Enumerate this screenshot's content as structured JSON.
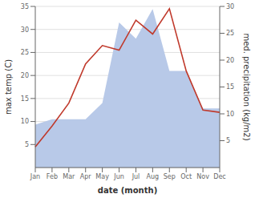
{
  "chart_data": {
    "type": "line",
    "categories": [
      "Jan",
      "Feb",
      "Mar",
      "Apr",
      "May",
      "Jun",
      "Jul",
      "Aug",
      "Sep",
      "Oct",
      "Nov",
      "Dec"
    ],
    "series": [
      {
        "type": "area",
        "color": "#b8c9e8",
        "axis": "y2",
        "values": [
          8.0,
          9.0,
          9.0,
          9.0,
          12.0,
          27.0,
          24.0,
          29.5,
          18.0,
          18.0,
          11.0,
          11.0
        ]
      },
      {
        "type": "line",
        "color": "#c0392b",
        "values": [
          4.5,
          9.0,
          14.0,
          22.5,
          26.5,
          25.5,
          32.0,
          29.0,
          34.5,
          21.0,
          12.5,
          12.0
        ]
      }
    ],
    "xlabel": "date (month)",
    "ylabel": "max temp (C)",
    "y2label": "med. precipitation (kg/m2)",
    "ylim": [
      0,
      35
    ],
    "yticks": [
      5,
      10,
      15,
      20,
      25,
      30,
      35
    ],
    "y2lim": [
      0,
      30
    ],
    "y2ticks": [
      5,
      10,
      15,
      20,
      25,
      30
    ],
    "grid": true
  }
}
